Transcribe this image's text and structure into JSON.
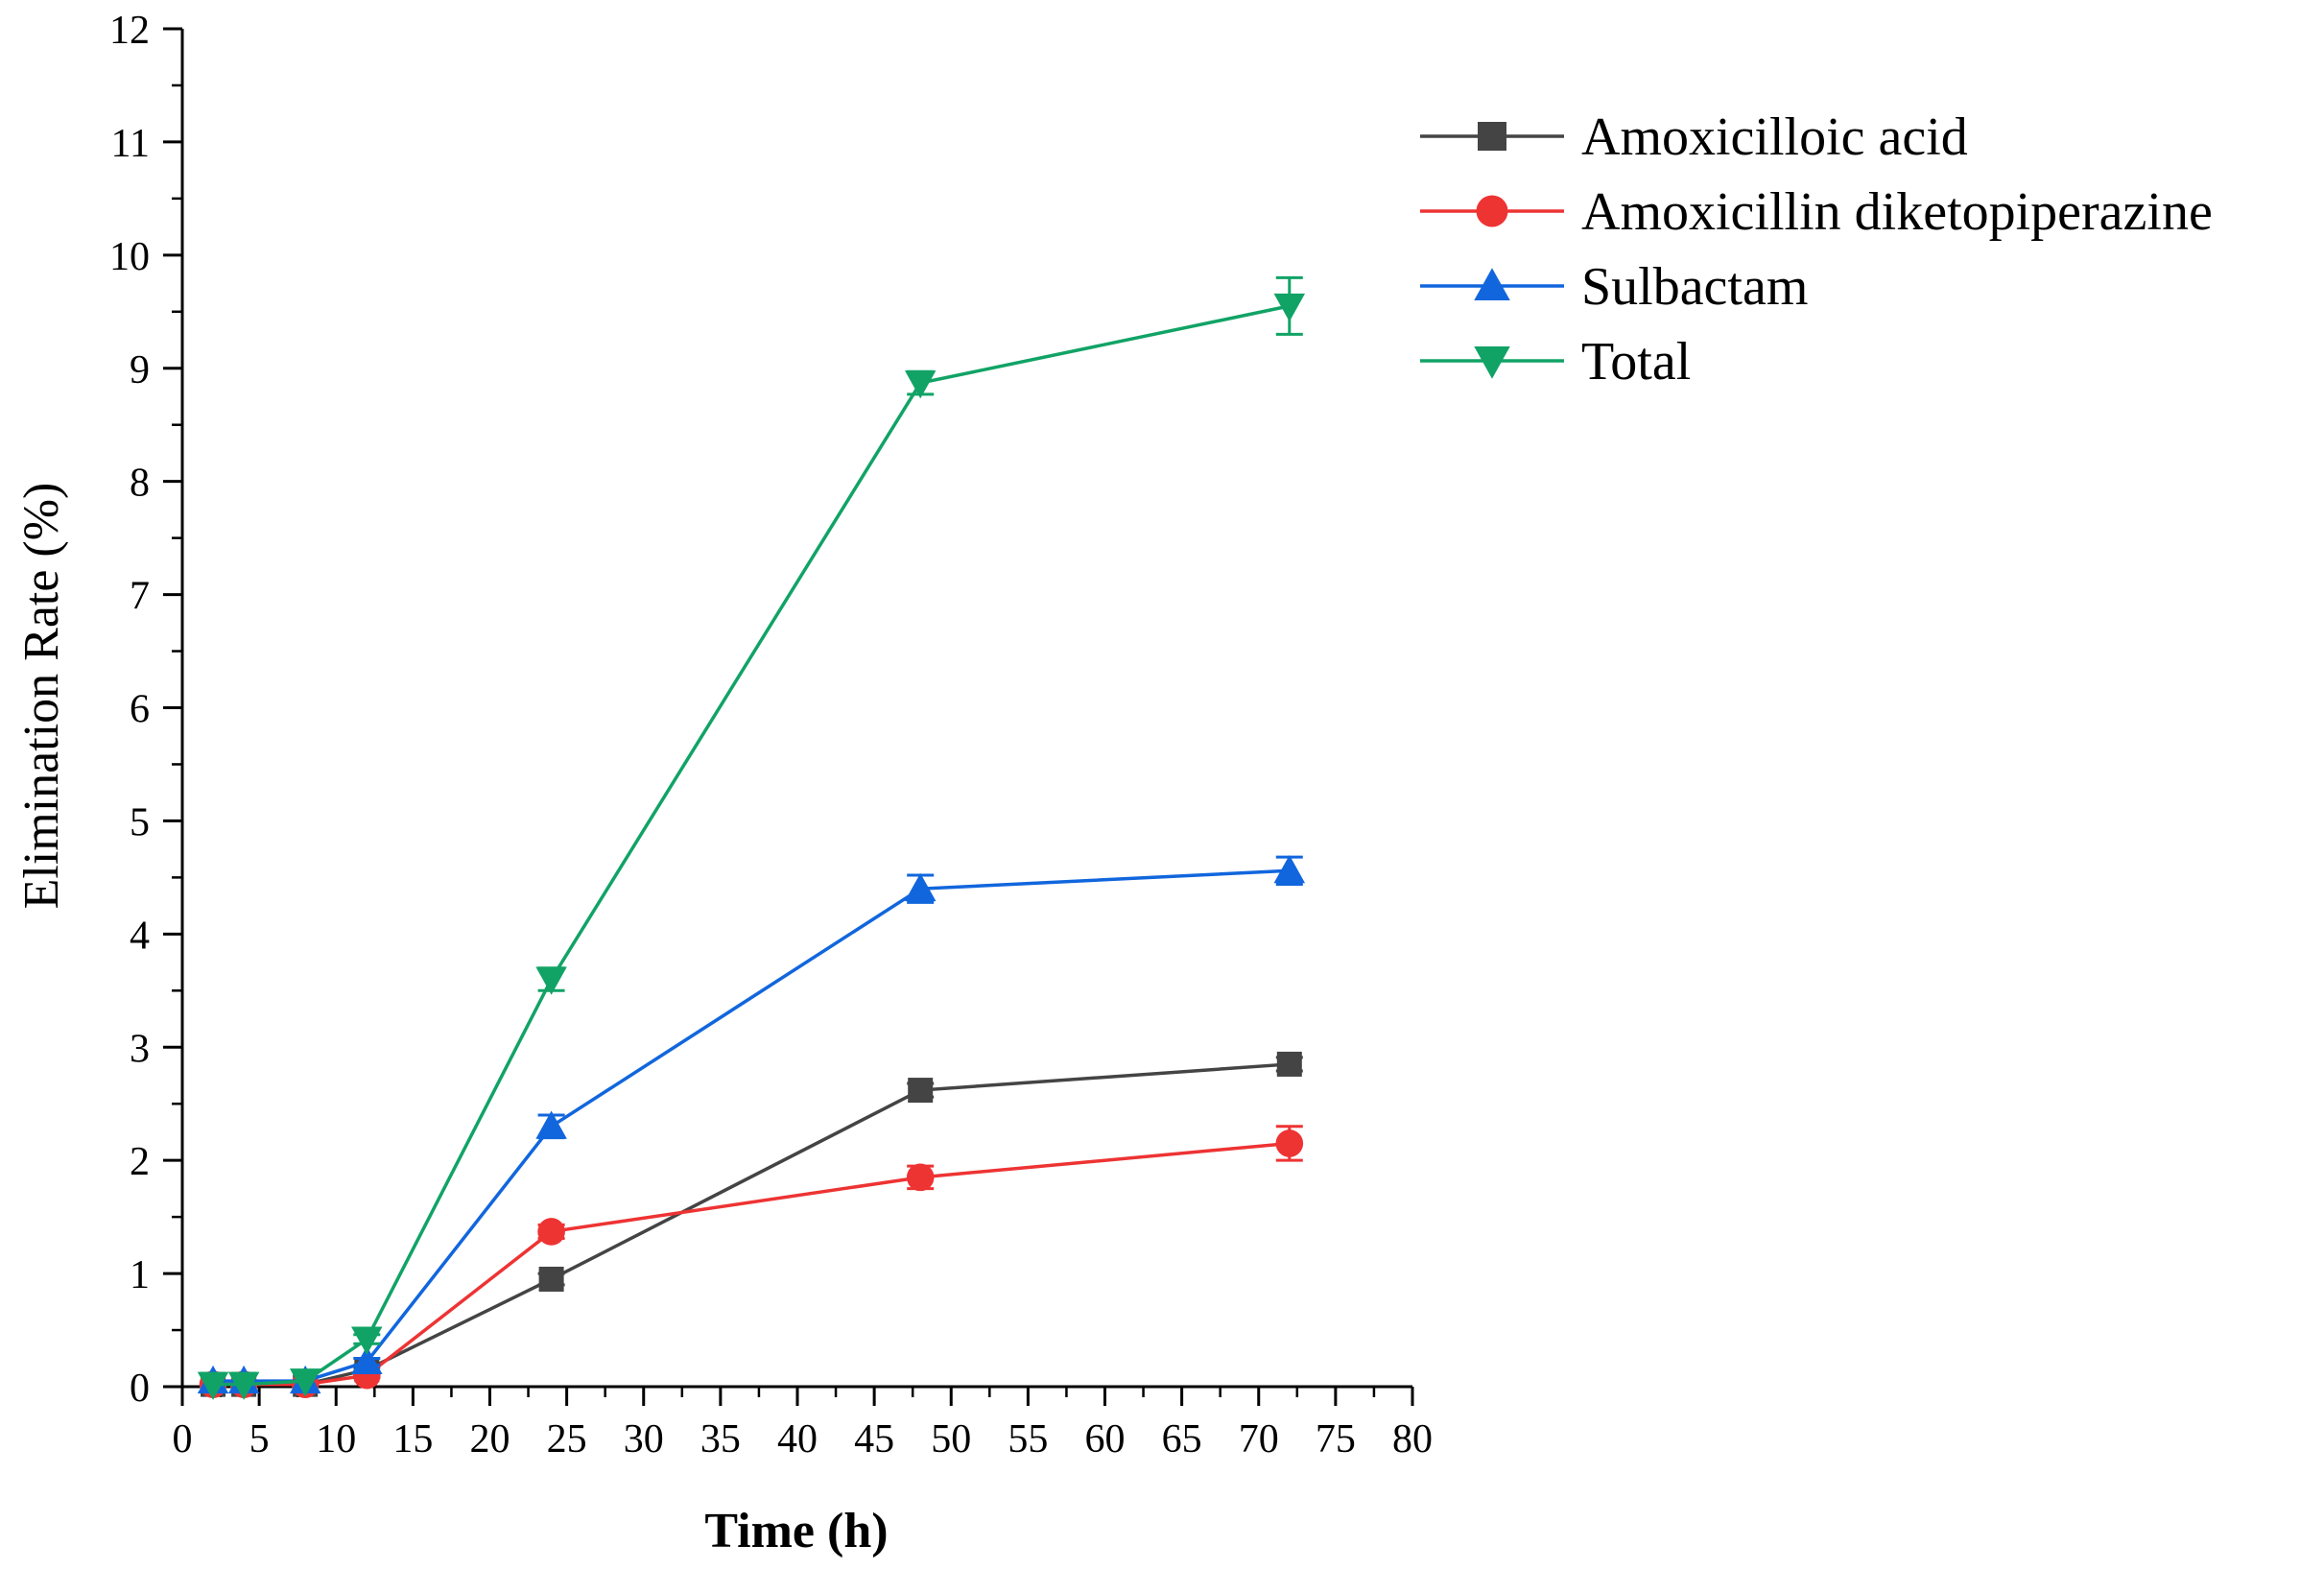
{
  "chart_data": {
    "type": "line",
    "title": "",
    "xlabel": "Time (h)",
    "ylabel": "Elimination Rate (%)",
    "xlim": [
      0,
      80
    ],
    "ylim": [
      0,
      12
    ],
    "xticks": [
      0,
      5,
      10,
      15,
      20,
      25,
      30,
      35,
      40,
      45,
      50,
      55,
      60,
      65,
      70,
      75,
      80
    ],
    "yticks": [
      0,
      1,
      2,
      3,
      4,
      5,
      6,
      7,
      8,
      9,
      10,
      11,
      12
    ],
    "grid": false,
    "legend_position": "top-right",
    "series": [
      {
        "name": "Amoxicilloic acid",
        "color": "#444444",
        "marker": "square",
        "x": [
          2,
          4,
          8,
          12,
          24,
          48,
          72
        ],
        "y": [
          0.02,
          0.02,
          0.02,
          0.15,
          0.95,
          2.62,
          2.85
        ],
        "err": [
          0,
          0,
          0,
          0.02,
          0.05,
          0.06,
          0.06
        ]
      },
      {
        "name": "Amoxicillin diketopiperazine",
        "color": "#EE3333",
        "marker": "circle",
        "x": [
          2,
          4,
          8,
          12,
          24,
          48,
          72
        ],
        "y": [
          0.02,
          0.02,
          0.02,
          0.1,
          1.37,
          1.85,
          2.15
        ],
        "err": [
          0,
          0,
          0,
          0.02,
          0.06,
          0.1,
          0.15
        ]
      },
      {
        "name": "Sulbactam",
        "color": "#1166DD",
        "marker": "triangle-up",
        "x": [
          2,
          4,
          8,
          12,
          24,
          48,
          72
        ],
        "y": [
          0.05,
          0.05,
          0.05,
          0.22,
          2.3,
          4.4,
          4.56
        ],
        "err": [
          0,
          0,
          0,
          0.03,
          0.1,
          0.12,
          0.12
        ]
      },
      {
        "name": "Total",
        "color": "#11A366",
        "marker": "triangle-down",
        "x": [
          2,
          4,
          8,
          12,
          24,
          48,
          72
        ],
        "y": [
          0.02,
          0.02,
          0.05,
          0.42,
          3.6,
          8.87,
          9.55
        ],
        "err": [
          0,
          0,
          0,
          0.04,
          0.1,
          0.1,
          0.25
        ]
      }
    ]
  }
}
